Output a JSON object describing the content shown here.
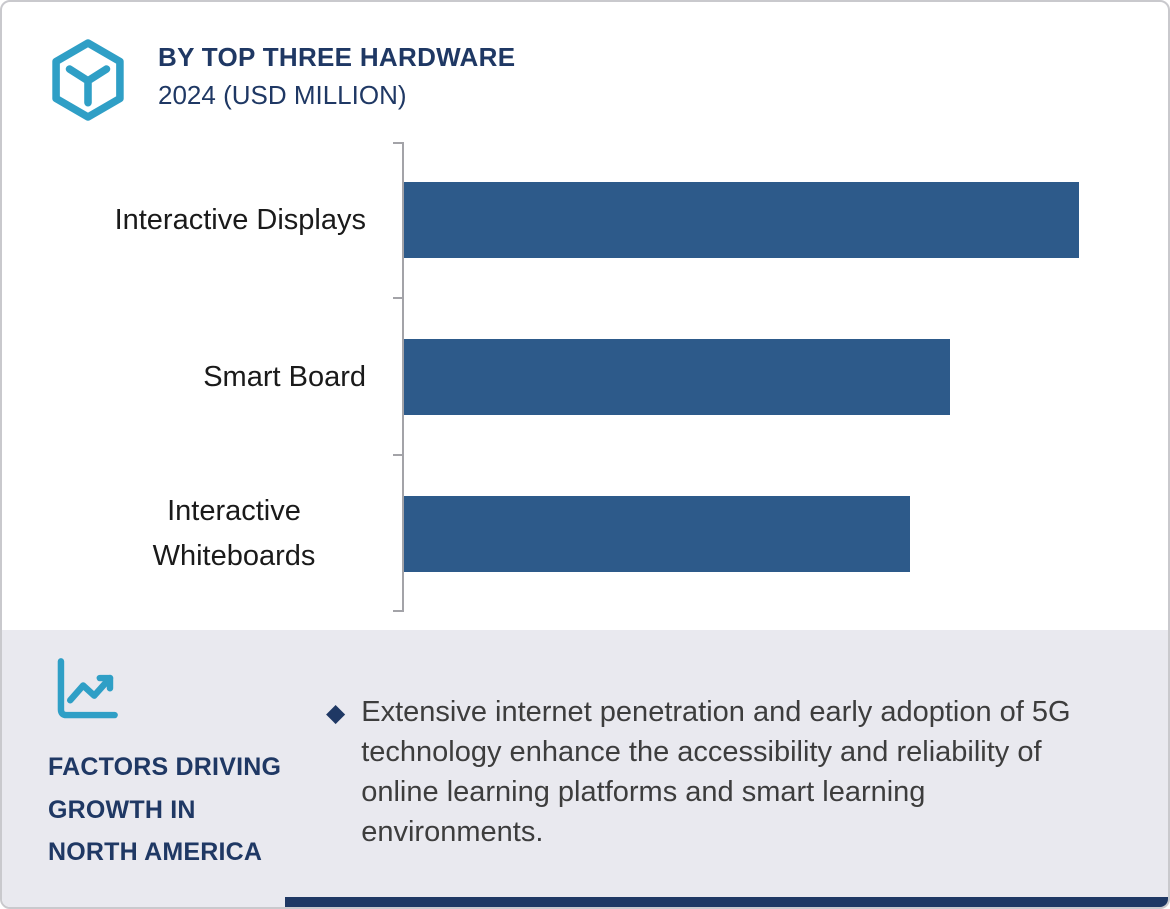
{
  "colors": {
    "navy": "#1f3864",
    "bar_blue": "#2d5a8a",
    "teal": "#2f9fc6",
    "footer_bg": "#e9e9ef",
    "axis_gray": "#a3a3a8",
    "body_text": "#3d3d3d"
  },
  "header": {
    "title": "BY TOP THREE HARDWARE",
    "subtitle": "2024 (USD MILLION)"
  },
  "chart_data": {
    "type": "bar",
    "orientation": "horizontal",
    "title": "BY TOP THREE HARDWARE",
    "subtitle": "2024 (USD MILLION)",
    "categories": [
      "Interactive Displays",
      "Smart Board",
      "Interactive Whiteboards"
    ],
    "values": [
      100,
      81,
      75
    ],
    "values_note": "no numeric data labels or axis ticks shown; values estimated relative to longest bar = 100",
    "xlim": [
      0,
      110
    ],
    "xlabel": "",
    "ylabel": "",
    "grid": false,
    "legend": false,
    "bar_color": "#2d5a8a"
  },
  "footer": {
    "heading_lines": [
      "FACTORS DRIVING",
      "GROWTH IN",
      "NORTH AMERICA"
    ],
    "bullet_marker": "◆",
    "bullet_text": "Extensive internet penetration and early adoption of 5G technology enhance the accessibility and reliability of online learning platforms and smart learning environments."
  },
  "icons": {
    "logo": "hexagon-cube-logo",
    "growth": "growth-line-chart"
  }
}
